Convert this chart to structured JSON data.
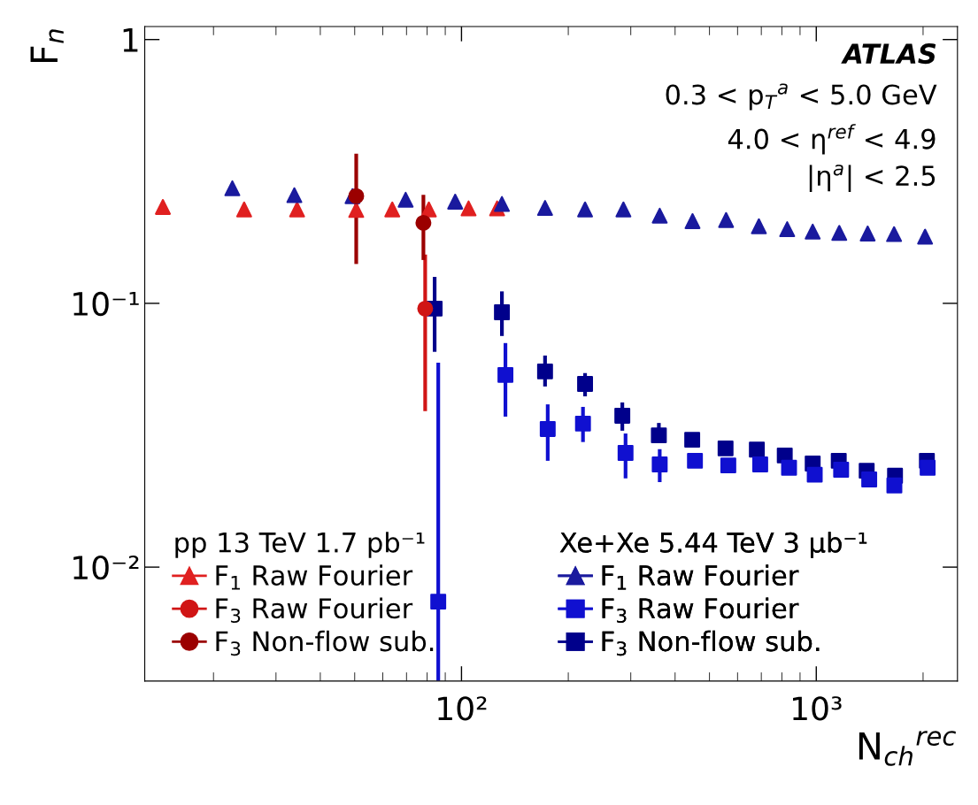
{
  "chart_data": {
    "type": "scatter",
    "xlabel": "N$_{ch}$$^{rec}$",
    "ylabel": "F$_{n}$",
    "log": "xy",
    "xlim": [
      12.8,
      2500
    ],
    "ylim": [
      0.0037,
      1.12
    ],
    "xticks": [
      {
        "value": 100,
        "label": "10²"
      },
      {
        "value": 1000,
        "label": "10³"
      }
    ],
    "yticks": [
      {
        "value": 0.01,
        "label": "10⁻²"
      },
      {
        "value": 0.1,
        "label": "10⁻¹"
      },
      1
    ],
    "grid": false,
    "legend": "bottom",
    "annotations": [
      "ATLAS",
      "0.3 < p$_{T}$$^{a}$ < 5.0 GeV",
      "4.0 < η$^{ref}$ < 4.9",
      "|η$^{a}$| < 2.5",
      "pp 13 TeV 1.7 pb⁻¹",
      "Xe+Xe 5.44 TeV 3 μb⁻¹"
    ],
    "series": [
      {
        "name": "F$_{1}$ Raw Fourier",
        "color": "#e02020",
        "marker": "triangle",
        "x": [
          14.4,
          24.4,
          34.4,
          50.5,
          63.8,
          80.9,
          104.7,
          126
        ],
        "values": [
          0.232,
          0.227,
          0.227,
          0.226,
          0.227,
          0.227,
          0.229,
          0.229
        ]
      },
      {
        "name": "F$_{3}$ Raw Fourier",
        "color": "#d01515",
        "marker": "circle",
        "x": [
          79.0
        ],
        "values": [
          0.0955
        ],
        "errors": [
          [
            0.039,
            0.153
          ]
        ]
      },
      {
        "name": "F$_{3}$ Non-flow sub.",
        "color": "#9b0000",
        "marker": "circle",
        "x": [
          50.5,
          78.1
        ],
        "values": [
          0.255,
          0.202
        ],
        "errors": [
          [
            0.141,
            0.369
          ],
          [
            0.146,
            0.258
          ]
        ]
      },
      {
        "name": "F$_{1}$ Raw Fourier",
        "color": "#1a1a9e",
        "marker": "triangle",
        "x": [
          22.6,
          33.8,
          49.3,
          69.6,
          96,
          130,
          172,
          223,
          286,
          362,
          448,
          557,
          689,
          828,
          977,
          1161,
          1396,
          1657,
          2026
        ],
        "values": [
          0.273,
          0.257,
          0.255,
          0.247,
          0.243,
          0.238,
          0.23,
          0.227,
          0.227,
          0.215,
          0.205,
          0.207,
          0.196,
          0.191,
          0.187,
          0.185,
          0.184,
          0.183,
          0.179
        ]
      },
      {
        "name": "F$_{3}$ Raw Fourier",
        "color": "#1010d0",
        "marker": "square",
        "x": [
          86,
          133,
          175,
          220,
          290,
          362,
          455,
          565,
          695,
          838,
          990,
          1175,
          1410,
          1660,
          2060
        ],
        "values": [
          0.0074,
          0.0535,
          0.0334,
          0.035,
          0.0271,
          0.0245,
          0.0253,
          0.0243,
          0.0245,
          0.0238,
          0.0224,
          0.0234,
          0.0215,
          0.0204,
          0.0238
        ],
        "errors": [
          [
            0.0037,
            0.0596
          ],
          [
            0.0372,
            0.0707
          ],
          [
            0.0253,
            0.0414
          ],
          [
            0.0298,
            0.0405
          ],
          [
            0.0217,
            0.0321
          ],
          [
            0.021,
            0.028
          ],
          null,
          null,
          null,
          null,
          null,
          null,
          null,
          null,
          null
        ]
      },
      {
        "name": "F$_{3}$ Non-flow sub.",
        "color": "#00008b",
        "marker": "square",
        "x": [
          84,
          130,
          172,
          223,
          284,
          360,
          447,
          555,
          680,
          815,
          977,
          1157,
          1387,
          1667,
          2050
        ],
        "values": [
          0.0955,
          0.0925,
          0.0552,
          0.0495,
          0.0375,
          0.0316,
          0.0304,
          0.0282,
          0.0279,
          0.0265,
          0.0247,
          0.0253,
          0.0232,
          0.0222,
          0.0253
        ],
        "errors": [
          [
            0.0655,
            0.126
          ],
          [
            0.0752,
            0.111
          ],
          [
            0.0484,
            0.0634
          ],
          [
            0.0444,
            0.0544
          ],
          [
            0.0329,
            0.0421
          ],
          [
            0.0309,
            0.0352
          ],
          null,
          null,
          null,
          null,
          null,
          null,
          null,
          null,
          null
        ]
      }
    ]
  }
}
